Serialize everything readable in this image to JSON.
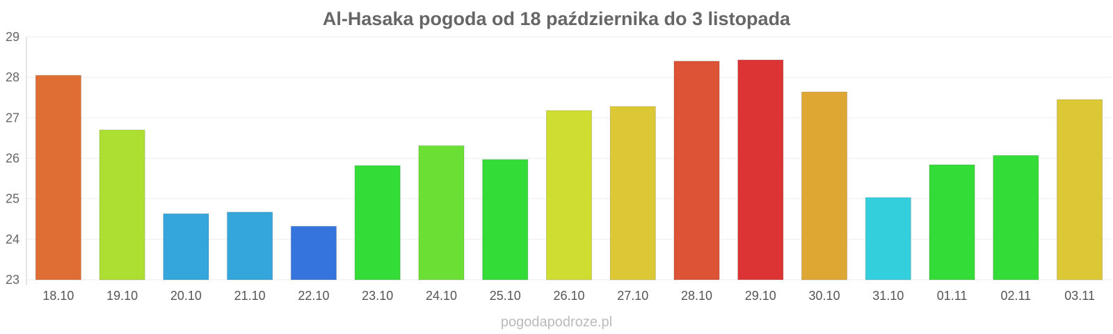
{
  "chart_data": {
    "type": "bar",
    "title": "Al-Hasaka pogoda od 18 października do 3 listopada",
    "xlabel": "",
    "ylabel": "",
    "ylim": [
      23,
      29
    ],
    "yticks": [
      "23",
      "24",
      "25",
      "26",
      "27",
      "28",
      "29"
    ],
    "grid": true,
    "categories": [
      "18.10",
      "19.10",
      "20.10",
      "21.10",
      "22.10",
      "23.10",
      "24.10",
      "25.10",
      "26.10",
      "27.10",
      "28.10",
      "29.10",
      "30.10",
      "31.10",
      "01.11",
      "02.11",
      "03.11"
    ],
    "values": [
      28.05,
      26.7,
      24.63,
      24.67,
      24.32,
      25.82,
      26.31,
      25.97,
      27.18,
      27.28,
      28.4,
      28.43,
      27.64,
      25.03,
      25.84,
      26.07,
      27.45
    ],
    "colors": [
      "#de6e33",
      "#addf33",
      "#34a6dc",
      "#34a6dc",
      "#3474dc",
      "#34dc37",
      "#6bdf33",
      "#34dc37",
      "#cfdd33",
      "#dcc834",
      "#dd5335",
      "#dc3434",
      "#dea734",
      "#34cfdc",
      "#34dc37",
      "#34dc37",
      "#dcc834"
    ]
  },
  "footer": "pogodapodroze.pl"
}
